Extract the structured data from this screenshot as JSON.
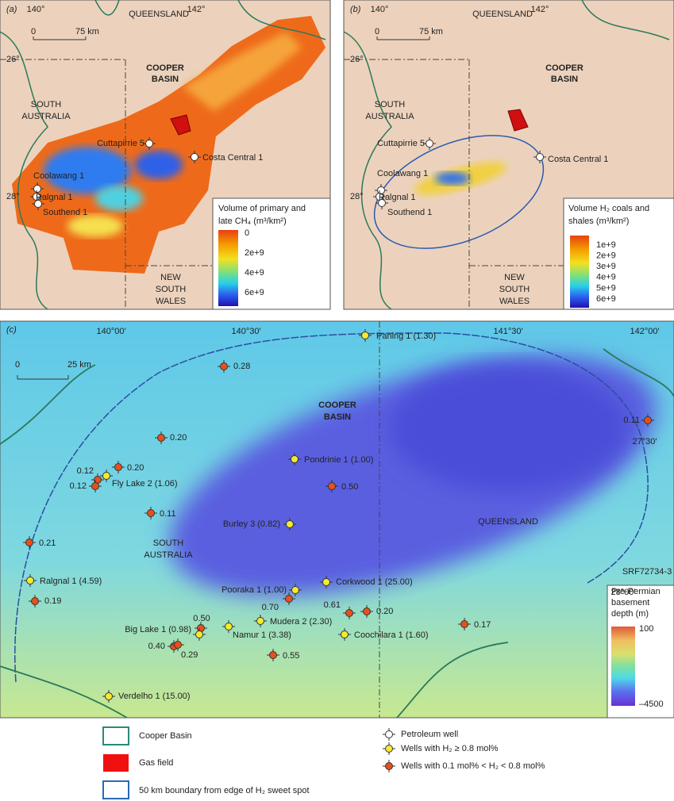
{
  "panel_a": {
    "label": "(a)",
    "lon": [
      "140°",
      "142°"
    ],
    "lat": [
      "26°",
      "28°"
    ],
    "scale": [
      "0",
      "75 km"
    ],
    "queensland": "QUEENSLAND",
    "south_australia": [
      "SOUTH",
      "AUSTRALIA"
    ],
    "nsw": [
      "NEW",
      "SOUTH",
      "WALES"
    ],
    "basin": [
      "COOPER",
      "BASIN"
    ],
    "wells": [
      "Cuttapirrie 5",
      "Costa Central 1",
      "Coolawang 1",
      "Ralgnal 1",
      "Southend 1"
    ],
    "legend": {
      "title": [
        "Volume of primary and",
        "late CH₄ (m³/km²)"
      ],
      "ticks": [
        "0",
        "2e+9",
        "4e+9",
        "6e+9"
      ]
    }
  },
  "panel_b": {
    "label": "(b)",
    "lon": [
      "140°",
      "142°"
    ],
    "lat": [
      "26°",
      "28°"
    ],
    "scale": [
      "0",
      "75 km"
    ],
    "queensland": "QUEENSLAND",
    "south_australia": [
      "SOUTH",
      "AUSTRALIA"
    ],
    "nsw": [
      "NEW",
      "SOUTH",
      "WALES"
    ],
    "basin": [
      "COOPER",
      "BASIN"
    ],
    "wells": [
      "Cuttapirrie 5",
      "Costa Central 1",
      "Coolawang 1",
      "Ralgnal 1",
      "Southend 1"
    ],
    "legend": {
      "title": [
        "Volume H₂ coals and",
        "shales (m³/km²)"
      ],
      "ticks": [
        "1e+9",
        "2e+9",
        "3e+9",
        "4e+9",
        "5e+9",
        "6e+9"
      ]
    }
  },
  "panel_c": {
    "label": "(c)",
    "lon": [
      "140°00′",
      "140°30′",
      "141°30′",
      "142°00′"
    ],
    "lat": [
      "27°30′",
      "28°00′"
    ],
    "scale": [
      "0",
      "25 km"
    ],
    "basin": [
      "COOPER",
      "BASIN"
    ],
    "queensland": "QUEENSLAND",
    "south_australia": [
      "SOUTH",
      "AUSTRALIA"
    ],
    "wells": [
      "Paning 1 (1.30)",
      "0.28",
      "0.11",
      "0.20",
      "Pondrinie 1 (1.00)",
      "0.20",
      "0.12",
      "Fly Lake 2 (1.06)",
      "0.12",
      "0.50",
      "0.11",
      "Burley 3 (0.82)",
      "0.21",
      "Ralgnal 1 (4.59)",
      "0.19",
      "Corkwood 1 (25.00)",
      "Pooraka 1 (1.00)",
      "0.70",
      "0.61",
      "0.20",
      "0.17",
      "Mudera 2 (2.30)",
      "0.50",
      "Big Lake 1 (0.98)",
      "Namur 1 (3.38)",
      "Coochilara 1 (1.60)",
      "0.40",
      "0.29",
      "0.55",
      "Verdelho 1 (15.00)"
    ],
    "code": "SRF72734-3",
    "legend": {
      "title": [
        "Pre-Permian",
        "basement",
        "depth (m)"
      ],
      "ticks": [
        "100",
        "–4500"
      ]
    }
  },
  "legend": {
    "items": [
      "Cooper Basin",
      "Gas field",
      "50 km boundary from edge of H₂ sweet spot",
      "Petroleum well",
      "Wells with H₂ ≥ 0.8 mol%",
      "Wells with 0.1 mol% < H₂ < 0.8 mol%"
    ]
  }
}
